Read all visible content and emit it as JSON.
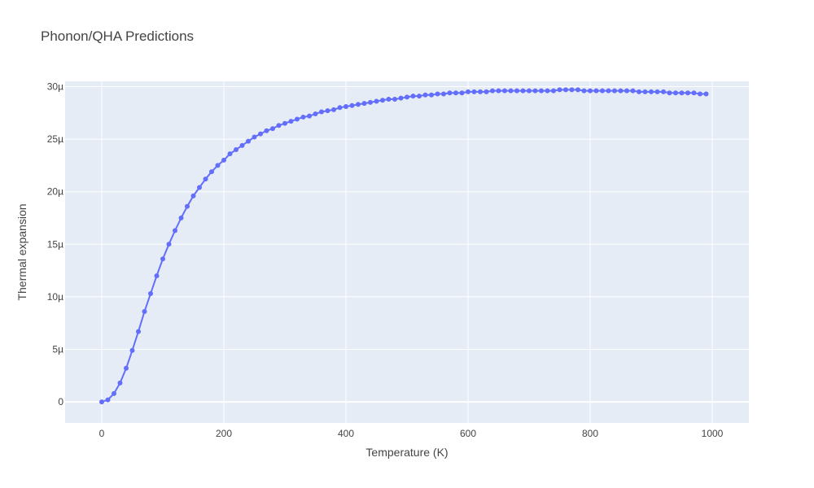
{
  "chart_data": {
    "type": "line",
    "title": "Phonon/QHA Predictions",
    "xlabel": "Temperature (K)",
    "ylabel": "Thermal expansion",
    "xlim": [
      -60,
      1060
    ],
    "ylim": [
      -2e-06,
      3.05e-05
    ],
    "grid": true,
    "x_ticks": [
      {
        "value": 0,
        "label": "0"
      },
      {
        "value": 200,
        "label": "200"
      },
      {
        "value": 400,
        "label": "400"
      },
      {
        "value": 600,
        "label": "600"
      },
      {
        "value": 800,
        "label": "800"
      },
      {
        "value": 1000,
        "label": "1000"
      }
    ],
    "y_ticks": [
      {
        "value": 0,
        "label": "0"
      },
      {
        "value": 5e-06,
        "label": "5µ"
      },
      {
        "value": 1e-05,
        "label": "10µ"
      },
      {
        "value": 1.5e-05,
        "label": "15µ"
      },
      {
        "value": 2e-05,
        "label": "20µ"
      },
      {
        "value": 2.5e-05,
        "label": "25µ"
      },
      {
        "value": 3e-05,
        "label": "30µ"
      }
    ],
    "series": [
      {
        "color": "#636efa",
        "x": [
          0,
          10,
          20,
          30,
          40,
          50,
          60,
          70,
          80,
          90,
          100,
          110,
          120,
          130,
          140,
          150,
          160,
          170,
          180,
          190,
          200,
          210,
          220,
          230,
          240,
          250,
          260,
          270,
          280,
          290,
          300,
          310,
          320,
          330,
          340,
          350,
          360,
          370,
          380,
          390,
          400,
          410,
          420,
          430,
          440,
          450,
          460,
          470,
          480,
          490,
          500,
          510,
          520,
          530,
          540,
          550,
          560,
          570,
          580,
          590,
          600,
          610,
          620,
          630,
          640,
          650,
          660,
          670,
          680,
          690,
          700,
          710,
          720,
          730,
          740,
          750,
          760,
          770,
          780,
          790,
          800,
          810,
          820,
          830,
          840,
          850,
          860,
          870,
          880,
          890,
          900,
          910,
          920,
          930,
          940,
          950,
          960,
          970,
          980,
          990
        ],
        "y": [
          0.0,
          2e-07,
          8e-07,
          1.8e-06,
          3.2e-06,
          4.9e-06,
          6.7e-06,
          8.6e-06,
          1.03e-05,
          1.2e-05,
          1.36e-05,
          1.5e-05,
          1.63e-05,
          1.75e-05,
          1.86e-05,
          1.96e-05,
          2.04e-05,
          2.12e-05,
          2.19e-05,
          2.25e-05,
          2.3e-05,
          2.36e-05,
          2.4e-05,
          2.44e-05,
          2.48e-05,
          2.52e-05,
          2.55e-05,
          2.58e-05,
          2.6e-05,
          2.63e-05,
          2.65e-05,
          2.67e-05,
          2.69e-05,
          2.71e-05,
          2.72e-05,
          2.74e-05,
          2.76e-05,
          2.77e-05,
          2.78e-05,
          2.8e-05,
          2.81e-05,
          2.82e-05,
          2.83e-05,
          2.84e-05,
          2.85e-05,
          2.86e-05,
          2.87e-05,
          2.88e-05,
          2.88e-05,
          2.89e-05,
          2.9e-05,
          2.91e-05,
          2.91e-05,
          2.92e-05,
          2.92e-05,
          2.93e-05,
          2.93e-05,
          2.94e-05,
          2.94e-05,
          2.94e-05,
          2.95e-05,
          2.95e-05,
          2.95e-05,
          2.95e-05,
          2.96e-05,
          2.96e-05,
          2.96e-05,
          2.96e-05,
          2.96e-05,
          2.96e-05,
          2.96e-05,
          2.96e-05,
          2.96e-05,
          2.96e-05,
          2.96e-05,
          2.97e-05,
          2.97e-05,
          2.97e-05,
          2.97e-05,
          2.96e-05,
          2.96e-05,
          2.96e-05,
          2.96e-05,
          2.96e-05,
          2.96e-05,
          2.96e-05,
          2.96e-05,
          2.96e-05,
          2.95e-05,
          2.95e-05,
          2.95e-05,
          2.95e-05,
          2.95e-05,
          2.94e-05,
          2.94e-05,
          2.94e-05,
          2.94e-05,
          2.94e-05,
          2.93e-05,
          2.93e-05
        ]
      }
    ]
  }
}
